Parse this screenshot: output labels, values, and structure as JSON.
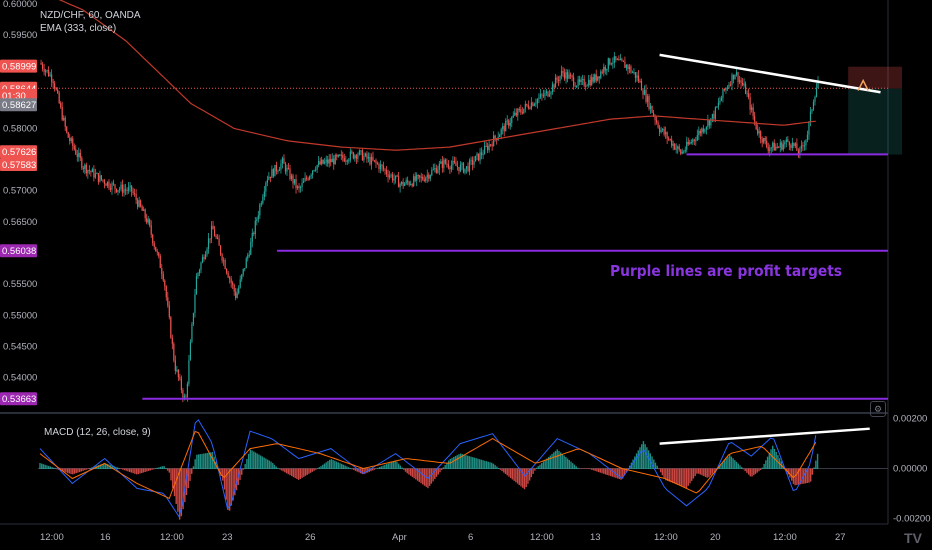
{
  "legend": {
    "symbol_line": "NZD/CHF, 60, OANDA",
    "ema_line": "EMA (333, close)",
    "macd_line": "MACD (12, 26, close, 9)"
  },
  "annotation": "Purple lines are profit targets",
  "logo": "TV",
  "gear_icon": "gear-icon",
  "colors": {
    "background": "#000000",
    "up_candle": "#26a69a",
    "down_candle": "#ef5350",
    "ema": "#c0392b",
    "target_line": "#8a2be2",
    "trendline": "#ffffff",
    "macd_line": "#2962ff",
    "signal_line": "#ff6d00"
  },
  "chart_data": [
    {
      "type": "candlestick",
      "title": "NZD/CHF, 60, OANDA",
      "price_axis_ticks": [
        "0.60000",
        "0.59500",
        "0.59000",
        "0.58500",
        "0.58000",
        "0.57500",
        "0.57000",
        "0.56500",
        "0.56000",
        "0.55500",
        "0.55000",
        "0.54500",
        "0.54000"
      ],
      "price_tags": [
        {
          "label": "0.58999",
          "value": 0.58999,
          "color": "#ef5350"
        },
        {
          "label": "0.58644",
          "value": 0.58644,
          "color": "#ef5350"
        },
        {
          "label": "01:30",
          "value": 0.5853,
          "color": "#ef5350"
        },
        {
          "label": "0.58627",
          "value": 0.5838,
          "color": "#787b86"
        },
        {
          "label": "0.57626",
          "value": 0.57626,
          "color": "#ef5350"
        },
        {
          "label": "0.57583",
          "value": 0.5742,
          "color": "#ef5350"
        },
        {
          "label": "0.56038",
          "value": 0.56038,
          "color": "#9c27b0"
        },
        {
          "label": "0.53663",
          "value": 0.53663,
          "color": "#9c27b0"
        }
      ],
      "time_axis_ticks": [
        "12:00",
        "16",
        "12:00",
        "23",
        "26",
        "Apr",
        "6",
        "12:00",
        "13",
        "12:00",
        "20",
        "12:00",
        "27"
      ],
      "ylim": [
        0.5345,
        0.6006
      ],
      "close_path": [
        [
          0,
          0.5905
        ],
        [
          12,
          0.588
        ],
        [
          25,
          0.579
        ],
        [
          40,
          0.574
        ],
        [
          55,
          0.572
        ],
        [
          70,
          0.5705
        ],
        [
          85,
          0.57
        ],
        [
          100,
          0.565
        ],
        [
          115,
          0.556
        ],
        [
          125,
          0.542
        ],
        [
          135,
          0.536
        ],
        [
          145,
          0.556
        ],
        [
          160,
          0.564
        ],
        [
          170,
          0.559
        ],
        [
          182,
          0.553
        ],
        [
          195,
          0.561
        ],
        [
          210,
          0.572
        ],
        [
          225,
          0.5745
        ],
        [
          240,
          0.57
        ],
        [
          255,
          0.574
        ],
        [
          275,
          0.575
        ],
        [
          295,
          0.576
        ],
        [
          315,
          0.574
        ],
        [
          335,
          0.571
        ],
        [
          355,
          0.572
        ],
        [
          375,
          0.5745
        ],
        [
          395,
          0.5735
        ],
        [
          410,
          0.576
        ],
        [
          425,
          0.579
        ],
        [
          440,
          0.582
        ],
        [
          455,
          0.584
        ],
        [
          470,
          0.5855
        ],
        [
          485,
          0.589
        ],
        [
          500,
          0.587
        ],
        [
          515,
          0.588
        ],
        [
          530,
          0.591
        ],
        [
          545,
          0.59
        ],
        [
          555,
          0.588
        ],
        [
          565,
          0.584
        ],
        [
          575,
          0.58
        ],
        [
          585,
          0.578
        ],
        [
          595,
          0.576
        ],
        [
          605,
          0.578
        ],
        [
          615,
          0.58
        ],
        [
          625,
          0.582
        ],
        [
          635,
          0.586
        ],
        [
          645,
          0.589
        ],
        [
          655,
          0.586
        ],
        [
          665,
          0.58
        ],
        [
          675,
          0.577
        ],
        [
          685,
          0.577
        ],
        [
          695,
          0.578
        ],
        [
          705,
          0.576
        ],
        [
          712,
          0.579
        ],
        [
          718,
          0.585
        ],
        [
          722,
          0.5875
        ]
      ],
      "ema_path": [
        [
          0,
          0.602
        ],
        [
          40,
          0.599
        ],
        [
          80,
          0.594
        ],
        [
          110,
          0.589
        ],
        [
          140,
          0.584
        ],
        [
          180,
          0.58
        ],
        [
          230,
          0.578
        ],
        [
          280,
          0.577
        ],
        [
          330,
          0.5765
        ],
        [
          380,
          0.577
        ],
        [
          430,
          0.5785
        ],
        [
          480,
          0.58
        ],
        [
          530,
          0.5815
        ],
        [
          570,
          0.582
        ],
        [
          610,
          0.5815
        ],
        [
          650,
          0.581
        ],
        [
          690,
          0.5805
        ],
        [
          722,
          0.5812
        ]
      ],
      "horizontal_lines": [
        {
          "name": "resistance-dotted",
          "value": 0.58644,
          "style": "dotted",
          "color": "#ef5350"
        },
        {
          "name": "profit-target-1",
          "value": 0.57583,
          "x_from": 600,
          "color": "#8a2be2"
        },
        {
          "name": "profit-target-2",
          "value": 0.56038,
          "x_from": 220,
          "color": "#8a2be2"
        },
        {
          "name": "profit-target-3",
          "value": 0.53663,
          "x_from": 95,
          "color": "#8a2be2"
        }
      ],
      "trendline": {
        "from": [
          575,
          0.5918
        ],
        "to": [
          780,
          0.5858
        ]
      },
      "position_box": {
        "x_from": 750,
        "x_to": 800,
        "entry": 0.5864,
        "stop": 0.5899,
        "target": 0.5758
      }
    },
    {
      "type": "macd",
      "title": "MACD (12, 26, close, 9)",
      "ylim": [
        -0.00215,
        0.00215
      ],
      "axis_ticks": [
        "0.00200",
        "0.00000",
        "-0.00200"
      ],
      "macd_path": [
        [
          0,
          0.0008
        ],
        [
          30,
          -0.0006
        ],
        [
          60,
          0.0004
        ],
        [
          90,
          -0.0008
        ],
        [
          115,
          -0.001
        ],
        [
          130,
          -0.002
        ],
        [
          145,
          0.0021
        ],
        [
          160,
          0.001
        ],
        [
          175,
          -0.0018
        ],
        [
          195,
          0.0015
        ],
        [
          215,
          0.0012
        ],
        [
          240,
          0.0004
        ],
        [
          270,
          0.0008
        ],
        [
          300,
          -0.0002
        ],
        [
          330,
          0.0006
        ],
        [
          360,
          -0.0004
        ],
        [
          390,
          0.001
        ],
        [
          420,
          0.0014
        ],
        [
          450,
          -0.0003
        ],
        [
          480,
          0.0012
        ],
        [
          510,
          0.0006
        ],
        [
          540,
          -0.0004
        ],
        [
          560,
          0.0008
        ],
        [
          580,
          -0.0008
        ],
        [
          600,
          -0.0015
        ],
        [
          620,
          -0.0008
        ],
        [
          640,
          0.0011
        ],
        [
          660,
          0.0005
        ],
        [
          680,
          0.0013
        ],
        [
          700,
          -0.001
        ],
        [
          715,
          0.0002
        ],
        [
          722,
          0.0018
        ]
      ],
      "signal_path": [
        [
          0,
          0.0006
        ],
        [
          30,
          -0.0004
        ],
        [
          60,
          0.0002
        ],
        [
          90,
          -0.0006
        ],
        [
          120,
          -0.0012
        ],
        [
          145,
          0.0016
        ],
        [
          170,
          -0.0004
        ],
        [
          195,
          0.0008
        ],
        [
          220,
          0.001
        ],
        [
          260,
          0.0006
        ],
        [
          300,
          0.0
        ],
        [
          340,
          0.0004
        ],
        [
          380,
          0.0002
        ],
        [
          420,
          0.0012
        ],
        [
          460,
          0.0002
        ],
        [
          500,
          0.0008
        ],
        [
          540,
          0.0
        ],
        [
          580,
          -0.0004
        ],
        [
          610,
          -0.001
        ],
        [
          640,
          0.0006
        ],
        [
          670,
          0.0009
        ],
        [
          700,
          -0.0004
        ],
        [
          722,
          0.0012
        ]
      ],
      "trendline": {
        "from": [
          575,
          0.001
        ],
        "to": [
          770,
          0.0016
        ]
      }
    }
  ]
}
